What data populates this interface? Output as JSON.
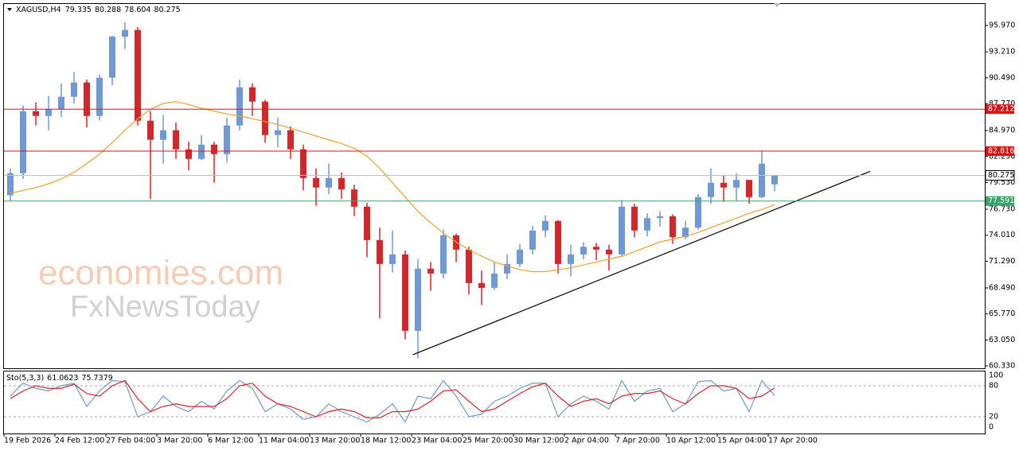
{
  "chart_data": [
    {
      "type": "candlestick",
      "symbol": "XAGUSD,H4",
      "categories": [
        "19 Feb 2026",
        null,
        null,
        null,
        "24 Feb 12:00",
        null,
        null,
        null,
        "27 Feb 04:00",
        null,
        null,
        null,
        "3 Mar 20:00",
        null,
        null,
        null,
        "6 Mar 12:00",
        null,
        null,
        null,
        "11 Mar 04:00",
        null,
        null,
        null,
        "13 Mar 20:00",
        null,
        null,
        null,
        "18 Mar 12:00",
        null,
        null,
        null,
        "23 Mar 04:00",
        null,
        null,
        null,
        "25 Mar 20:00",
        null,
        null,
        null,
        "30 Mar 12:00",
        null,
        null,
        null,
        "2 Apr 04:00",
        null,
        null,
        null,
        "7 Apr 20:00",
        null,
        null,
        null,
        "10 Apr 12:00",
        null,
        null,
        null,
        "15 Apr 04:00",
        null,
        null,
        null,
        "17 Apr 20:00"
      ],
      "open": [
        78.2,
        80.5,
        87.0,
        86.5,
        87.2,
        88.5,
        90.0,
        86.5,
        90.5,
        94.8,
        95.5,
        86.0,
        84.0,
        85.0,
        83.0,
        82.0,
        83.5,
        82.5,
        85.5,
        89.5,
        88.0,
        84.5,
        85.0,
        83.0,
        80.0,
        79.0,
        80.0,
        78.8,
        77.0,
        73.5,
        71.0,
        72.0,
        64.0,
        70.5,
        70.0,
        74.0,
        72.5,
        69.0,
        68.5,
        70.0,
        71.0,
        72.5,
        74.5,
        75.5,
        71.0,
        72.0,
        72.8,
        72.5,
        72.0,
        77.0,
        74.5,
        75.8,
        76.0,
        73.8,
        74.8,
        78.0,
        79.5,
        79.0,
        79.8,
        78.0,
        79.335
      ],
      "high": [
        81.0,
        87.6,
        87.9,
        88.6,
        89.9,
        91.1,
        90.3,
        90.8,
        94.9,
        96.3,
        95.8,
        87.0,
        86.6,
        85.8,
        83.8,
        84.5,
        83.8,
        86.3,
        90.3,
        89.9,
        88.2,
        86.3,
        85.4,
        83.5,
        81.0,
        81.5,
        80.6,
        79.3,
        77.4,
        74.8,
        74.5,
        72.4,
        71.5,
        71.2,
        74.6,
        74.2,
        72.8,
        70.3,
        71.2,
        72.0,
        73.1,
        75.0,
        76.1,
        75.6,
        73.0,
        73.3,
        73.2,
        73.0,
        77.7,
        77.3,
        76.3,
        76.5,
        76.2,
        75.5,
        78.3,
        81.0,
        80.3,
        80.5,
        79.8,
        82.9,
        80.288
      ],
      "low": [
        77.6,
        79.9,
        85.5,
        85.0,
        86.4,
        87.8,
        85.3,
        86.0,
        89.7,
        93.5,
        85.5,
        77.8,
        81.5,
        82.0,
        80.8,
        81.9,
        79.5,
        81.6,
        85.0,
        86.5,
        83.7,
        83.2,
        82.0,
        78.7,
        77.1,
        78.3,
        77.8,
        76.0,
        71.7,
        65.3,
        70.1,
        63.1,
        61.1,
        68.2,
        69.5,
        71.2,
        67.8,
        66.7,
        68.3,
        69.4,
        70.7,
        72.0,
        73.8,
        70.0,
        69.7,
        71.5,
        71.4,
        70.3,
        71.8,
        73.8,
        73.9,
        74.9,
        73.1,
        73.6,
        74.6,
        77.3,
        77.5,
        77.6,
        77.3,
        77.9,
        78.604
      ],
      "close": [
        80.5,
        87.0,
        86.5,
        87.2,
        88.5,
        90.0,
        86.5,
        90.5,
        94.8,
        95.5,
        86.0,
        84.0,
        85.0,
        83.0,
        82.0,
        83.5,
        82.5,
        85.5,
        89.5,
        88.0,
        84.5,
        85.0,
        83.0,
        80.0,
        79.0,
        80.0,
        78.8,
        77.0,
        73.5,
        71.0,
        72.0,
        64.0,
        70.5,
        70.0,
        74.0,
        72.5,
        69.0,
        68.5,
        70.0,
        71.0,
        72.5,
        74.5,
        75.5,
        71.0,
        72.0,
        72.8,
        72.5,
        72.0,
        77.0,
        74.5,
        75.8,
        76.0,
        73.8,
        74.8,
        78.0,
        79.5,
        79.0,
        79.8,
        78.0,
        81.5,
        80.275
      ],
      "up_color": "#6f98d6",
      "down_color": "#d7262b",
      "ma": {
        "color": "#f0a030",
        "values": [
          78.4,
          78.7,
          79.0,
          79.4,
          79.9,
          80.6,
          81.5,
          82.5,
          83.7,
          85.0,
          86.2,
          87.2,
          87.8,
          88.0,
          87.7,
          87.3,
          87.0,
          86.7,
          86.5,
          86.2,
          85.9,
          85.6,
          85.2,
          84.8,
          84.4,
          84.0,
          83.6,
          83.1,
          82.3,
          81.0,
          79.5,
          78.0,
          76.5,
          75.3,
          74.2,
          73.3,
          72.5,
          71.8,
          71.2,
          70.8,
          70.4,
          70.2,
          70.2,
          70.4,
          70.6,
          70.9,
          71.2,
          71.5,
          71.8,
          72.3,
          72.8,
          73.3,
          73.6,
          73.9,
          74.3,
          74.8,
          75.3,
          75.8,
          76.3,
          76.7,
          77.2
        ]
      },
      "trendline": {
        "color": "#000000",
        "x": [
          31.6,
          67.5
        ],
        "y": [
          61.5,
          80.7
        ]
      },
      "levels": [
        {
          "value": 87.212,
          "color": "#e01010"
        },
        {
          "value": 82.816,
          "color": "#e01010"
        },
        {
          "value": 77.591,
          "color": "#3aa66a"
        }
      ],
      "current_price_color": "#c0c0c0",
      "ylim": [
        60.08,
        98.22
      ],
      "yticks": [
        {
          "value": 60.33,
          "label": "60.330"
        },
        {
          "value": 63.05,
          "label": "63.050"
        },
        {
          "value": 65.77,
          "label": "65.770"
        },
        {
          "value": 68.49,
          "label": "68.490"
        },
        {
          "value": 71.29,
          "label": "71.290"
        },
        {
          "value": 74.01,
          "label": "74.010"
        },
        {
          "value": 76.73,
          "label": "76.730"
        },
        {
          "value": 79.53,
          "label": "79.530"
        },
        {
          "value": 82.25,
          "label": "82.250"
        },
        {
          "value": 84.97,
          "label": "84.970"
        },
        {
          "value": 87.77,
          "label": "87.770"
        },
        {
          "value": 90.49,
          "label": "90.490"
        },
        {
          "value": 93.21,
          "label": "93.210"
        },
        {
          "value": 95.97,
          "label": "95.970"
        }
      ],
      "watermark": [
        "economies.com",
        "FxNewsToday"
      ]
    },
    {
      "type": "line",
      "title": "Sto(5,3,3)",
      "series": [
        {
          "color": "#6f98d6",
          "values": [
            60,
            85,
            75,
            70,
            80,
            85,
            40,
            70,
            90,
            88,
            20,
            30,
            60,
            40,
            30,
            50,
            35,
            70,
            90,
            75,
            30,
            45,
            35,
            15,
            20,
            45,
            30,
            20,
            10,
            25,
            45,
            10,
            60,
            55,
            90,
            60,
            20,
            25,
            50,
            60,
            75,
            85,
            85,
            20,
            45,
            60,
            50,
            35,
            90,
            50,
            70,
            75,
            30,
            45,
            88,
            90,
            70,
            75,
            30,
            90,
            61.0623
          ]
        },
        {
          "color": "#d7262b",
          "values": [
            55,
            70,
            80,
            75,
            75,
            83,
            65,
            60,
            80,
            90,
            55,
            30,
            40,
            45,
            40,
            40,
            40,
            55,
            80,
            85,
            60,
            45,
            40,
            30,
            20,
            30,
            35,
            30,
            18,
            18,
            30,
            30,
            35,
            50,
            70,
            72,
            50,
            30,
            35,
            50,
            65,
            78,
            85,
            60,
            40,
            50,
            55,
            45,
            60,
            65,
            65,
            70,
            55,
            45,
            65,
            80,
            80,
            75,
            55,
            60,
            75.7379
          ]
        }
      ],
      "ylim": [
        0,
        100
      ],
      "yticks": [
        0,
        20,
        80,
        100
      ]
    }
  ]
}
